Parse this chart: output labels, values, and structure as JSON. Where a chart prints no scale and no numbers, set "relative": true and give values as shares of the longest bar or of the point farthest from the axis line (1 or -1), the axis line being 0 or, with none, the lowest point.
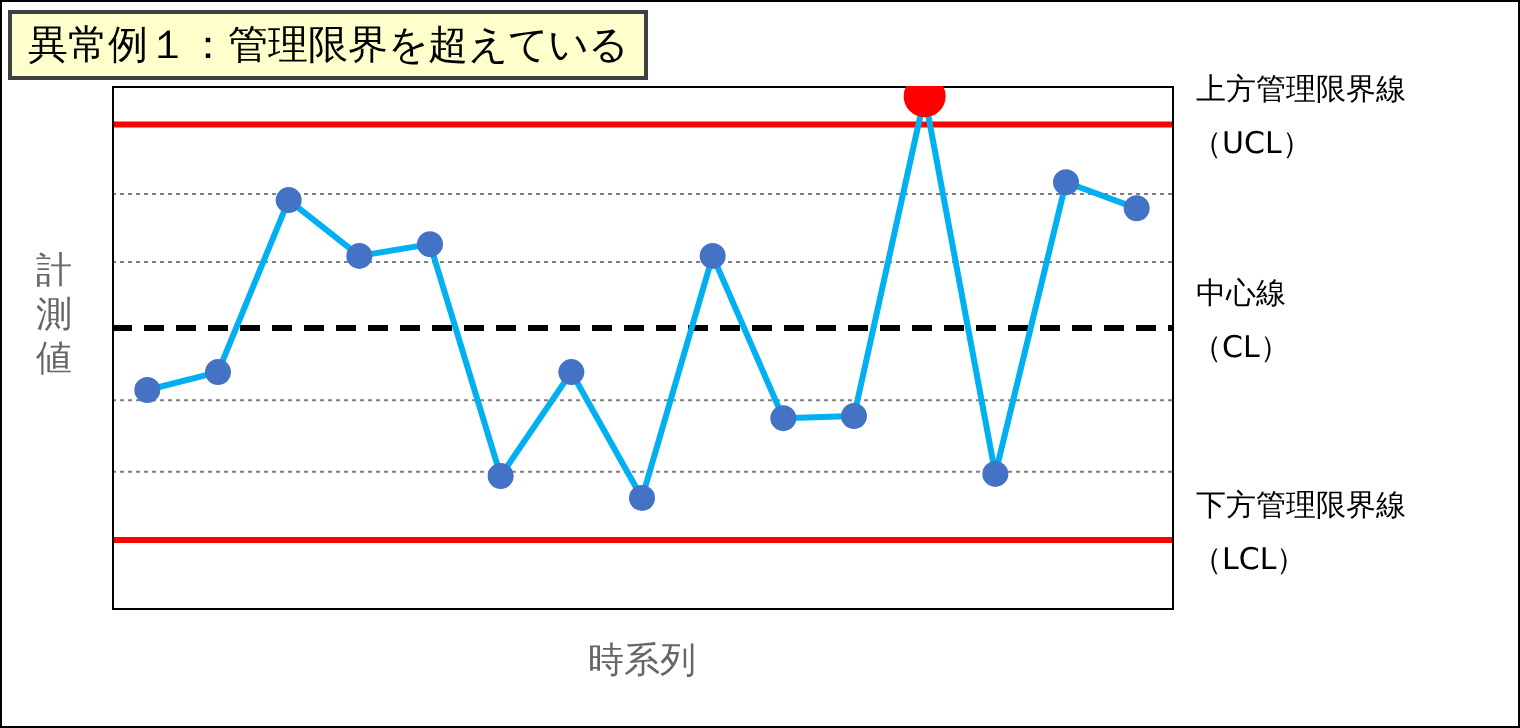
{
  "chart_data": {
    "type": "line",
    "title": "異常例１：管理限界を超えている",
    "xlabel": "時系列",
    "ylabel": "計測値",
    "relative": true,
    "categories": [
      null,
      null,
      null,
      null,
      null,
      null,
      null,
      null,
      null,
      null,
      null,
      null,
      null,
      null,
      null
    ],
    "series": [
      {
        "color": "#00b0f0",
        "colors": [
          "#4472c4",
          "#4472c4",
          "#4472c4",
          "#4472c4",
          "#4472c4",
          "#4472c4",
          "#4472c4",
          "#4472c4",
          "#4472c4",
          "#4472c4",
          "#4472c4",
          "#ff0000",
          "#4472c4",
          "#4472c4",
          "#4472c4"
        ],
        "values": [
          0.426,
          0.461,
          0.797,
          0.688,
          0.711,
          0.258,
          0.461,
          0.215,
          0.688,
          0.371,
          0.375,
          1,
          0.262,
          0.832,
          0.781
        ]
      }
    ],
    "ref_lines": [
      {
        "axis": "y",
        "value": 0.945,
        "label": "上方管理限界線（UCL）",
        "color": "#ff0000",
        "line_style": "solid"
      },
      {
        "axis": "y",
        "value": 0.547,
        "label": "中心線（CL）",
        "color": "#000000",
        "line_style": "dashed"
      },
      {
        "axis": "y",
        "value": 0.133,
        "label": "下方管理限界線（LCL）",
        "color": "#ff0000",
        "line_style": "solid"
      },
      {
        "axis": "y",
        "value": 0.809,
        "label": null,
        "color": "#808080",
        "line_style": "dotted"
      },
      {
        "axis": "y",
        "value": 0.676,
        "label": null,
        "color": "#808080",
        "line_style": "dotted"
      },
      {
        "axis": "y",
        "value": 0.406,
        "label": null,
        "color": "#808080",
        "line_style": "dotted"
      },
      {
        "axis": "y",
        "value": 0.266,
        "label": null,
        "color": "#808080",
        "line_style": "dotted"
      }
    ],
    "marker": "circle",
    "legend": false
  }
}
